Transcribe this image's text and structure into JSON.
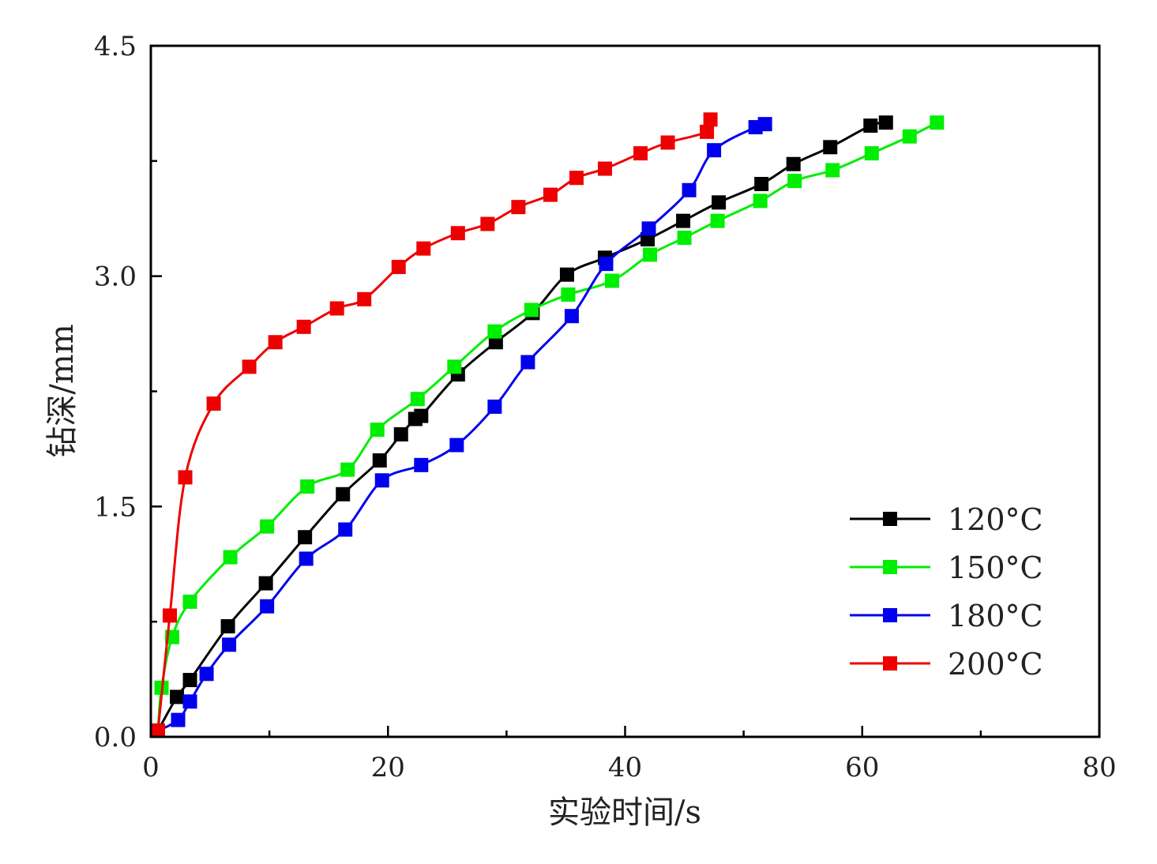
{
  "chart_data": {
    "type": "line",
    "xlabel": "实验时间/s",
    "ylabel": "钻深/mm",
    "xlim": [
      0,
      80
    ],
    "ylim": [
      0,
      4.5
    ],
    "xticks": [
      "0",
      "20",
      "40",
      "60",
      "80"
    ],
    "yticks": [
      "0.0",
      "1.5",
      "3.0",
      "4.5"
    ],
    "grid": false,
    "legend_position": "bottom-right",
    "series": [
      {
        "name": "120°C",
        "color": "#000000",
        "x": [
          0.6,
          2.2,
          3.3,
          6.5,
          9.7,
          13.0,
          16.2,
          19.3,
          21.1,
          22.3,
          22.8,
          25.9,
          29.1,
          32.2,
          35.1,
          38.3,
          41.9,
          44.9,
          47.9,
          51.5,
          54.2,
          57.3,
          60.7,
          62.0
        ],
        "y": [
          0.04,
          0.26,
          0.37,
          0.72,
          1.0,
          1.3,
          1.58,
          1.8,
          1.97,
          2.07,
          2.09,
          2.36,
          2.57,
          2.76,
          3.01,
          3.12,
          3.24,
          3.36,
          3.48,
          3.6,
          3.73,
          3.84,
          3.98,
          4.0
        ]
      },
      {
        "name": "150°C",
        "color": "#00ee00",
        "x": [
          0.6,
          0.9,
          1.8,
          3.3,
          6.7,
          9.8,
          13.2,
          16.6,
          19.1,
          22.5,
          25.6,
          29.0,
          32.1,
          35.2,
          38.9,
          42.1,
          45.0,
          47.8,
          51.4,
          54.3,
          57.5,
          60.8,
          64.0,
          66.3
        ],
        "y": [
          0.04,
          0.32,
          0.65,
          0.88,
          1.17,
          1.37,
          1.63,
          1.74,
          2.0,
          2.2,
          2.41,
          2.64,
          2.78,
          2.88,
          2.97,
          3.14,
          3.25,
          3.36,
          3.49,
          3.62,
          3.69,
          3.8,
          3.91,
          4.0
        ]
      },
      {
        "name": "180°C",
        "color": "#0000ee",
        "x": [
          0.6,
          2.3,
          3.3,
          4.7,
          6.6,
          9.8,
          13.1,
          16.4,
          19.5,
          22.8,
          25.8,
          29.0,
          31.8,
          35.5,
          38.4,
          42.0,
          45.4,
          47.5,
          51.0,
          51.8
        ],
        "y": [
          0.04,
          0.11,
          0.23,
          0.41,
          0.6,
          0.85,
          1.16,
          1.35,
          1.67,
          1.77,
          1.9,
          2.15,
          2.44,
          2.74,
          3.08,
          3.31,
          3.56,
          3.82,
          3.97,
          3.99
        ]
      },
      {
        "name": "200°C",
        "color": "#ee0000",
        "x": [
          0.6,
          1.6,
          2.9,
          5.3,
          8.3,
          10.5,
          12.9,
          15.7,
          18.0,
          20.9,
          23.0,
          25.9,
          28.4,
          31.0,
          33.7,
          35.9,
          38.3,
          41.3,
          43.6,
          46.9,
          47.2
        ],
        "y": [
          0.04,
          0.79,
          1.69,
          2.17,
          2.41,
          2.57,
          2.67,
          2.79,
          2.85,
          3.06,
          3.18,
          3.28,
          3.34,
          3.45,
          3.53,
          3.64,
          3.7,
          3.8,
          3.87,
          3.94,
          4.02
        ]
      }
    ]
  }
}
